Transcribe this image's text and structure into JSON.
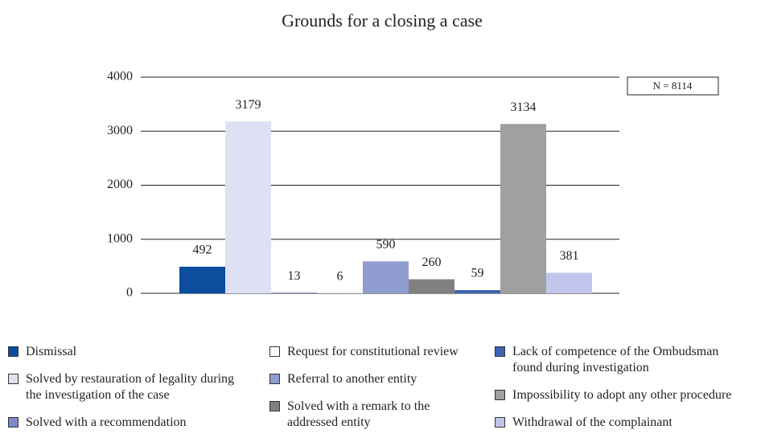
{
  "chart_data": {
    "type": "bar",
    "title": "Grounds for a closing a case",
    "annotation": "N = 8114",
    "ylim": [
      0,
      4000
    ],
    "yticks": [
      0,
      1000,
      2000,
      3000,
      4000
    ],
    "grid": true,
    "series": [
      {
        "name": "Dismissal",
        "color": "#0b4e9e",
        "values": [
          492
        ]
      },
      {
        "name": "Solved by restauration of legality during the investigation of the case",
        "color": "#dde1f3",
        "values": [
          3179
        ]
      },
      {
        "name": "Solved with a recommendation",
        "color": "#7d8cc7",
        "values": [
          13
        ]
      },
      {
        "name": "Request for constitutional review",
        "color": "#ffffff",
        "values": [
          6
        ]
      },
      {
        "name": "Referral to another entity",
        "color": "#8f9dd2",
        "values": [
          590
        ]
      },
      {
        "name": "Solved with a remark to the addressed entity",
        "color": "#808080",
        "values": [
          260
        ]
      },
      {
        "name": "Lack of competence of the Ombudsman found during investigation",
        "color": "#3d63b0",
        "values": [
          59
        ]
      },
      {
        "name": "Impossibility to adopt any other procedure",
        "color": "#a0a0a0",
        "values": [
          3134
        ]
      },
      {
        "name": "Withdrawal of the complainant",
        "color": "#c0c6eb",
        "values": [
          381
        ]
      }
    ]
  }
}
